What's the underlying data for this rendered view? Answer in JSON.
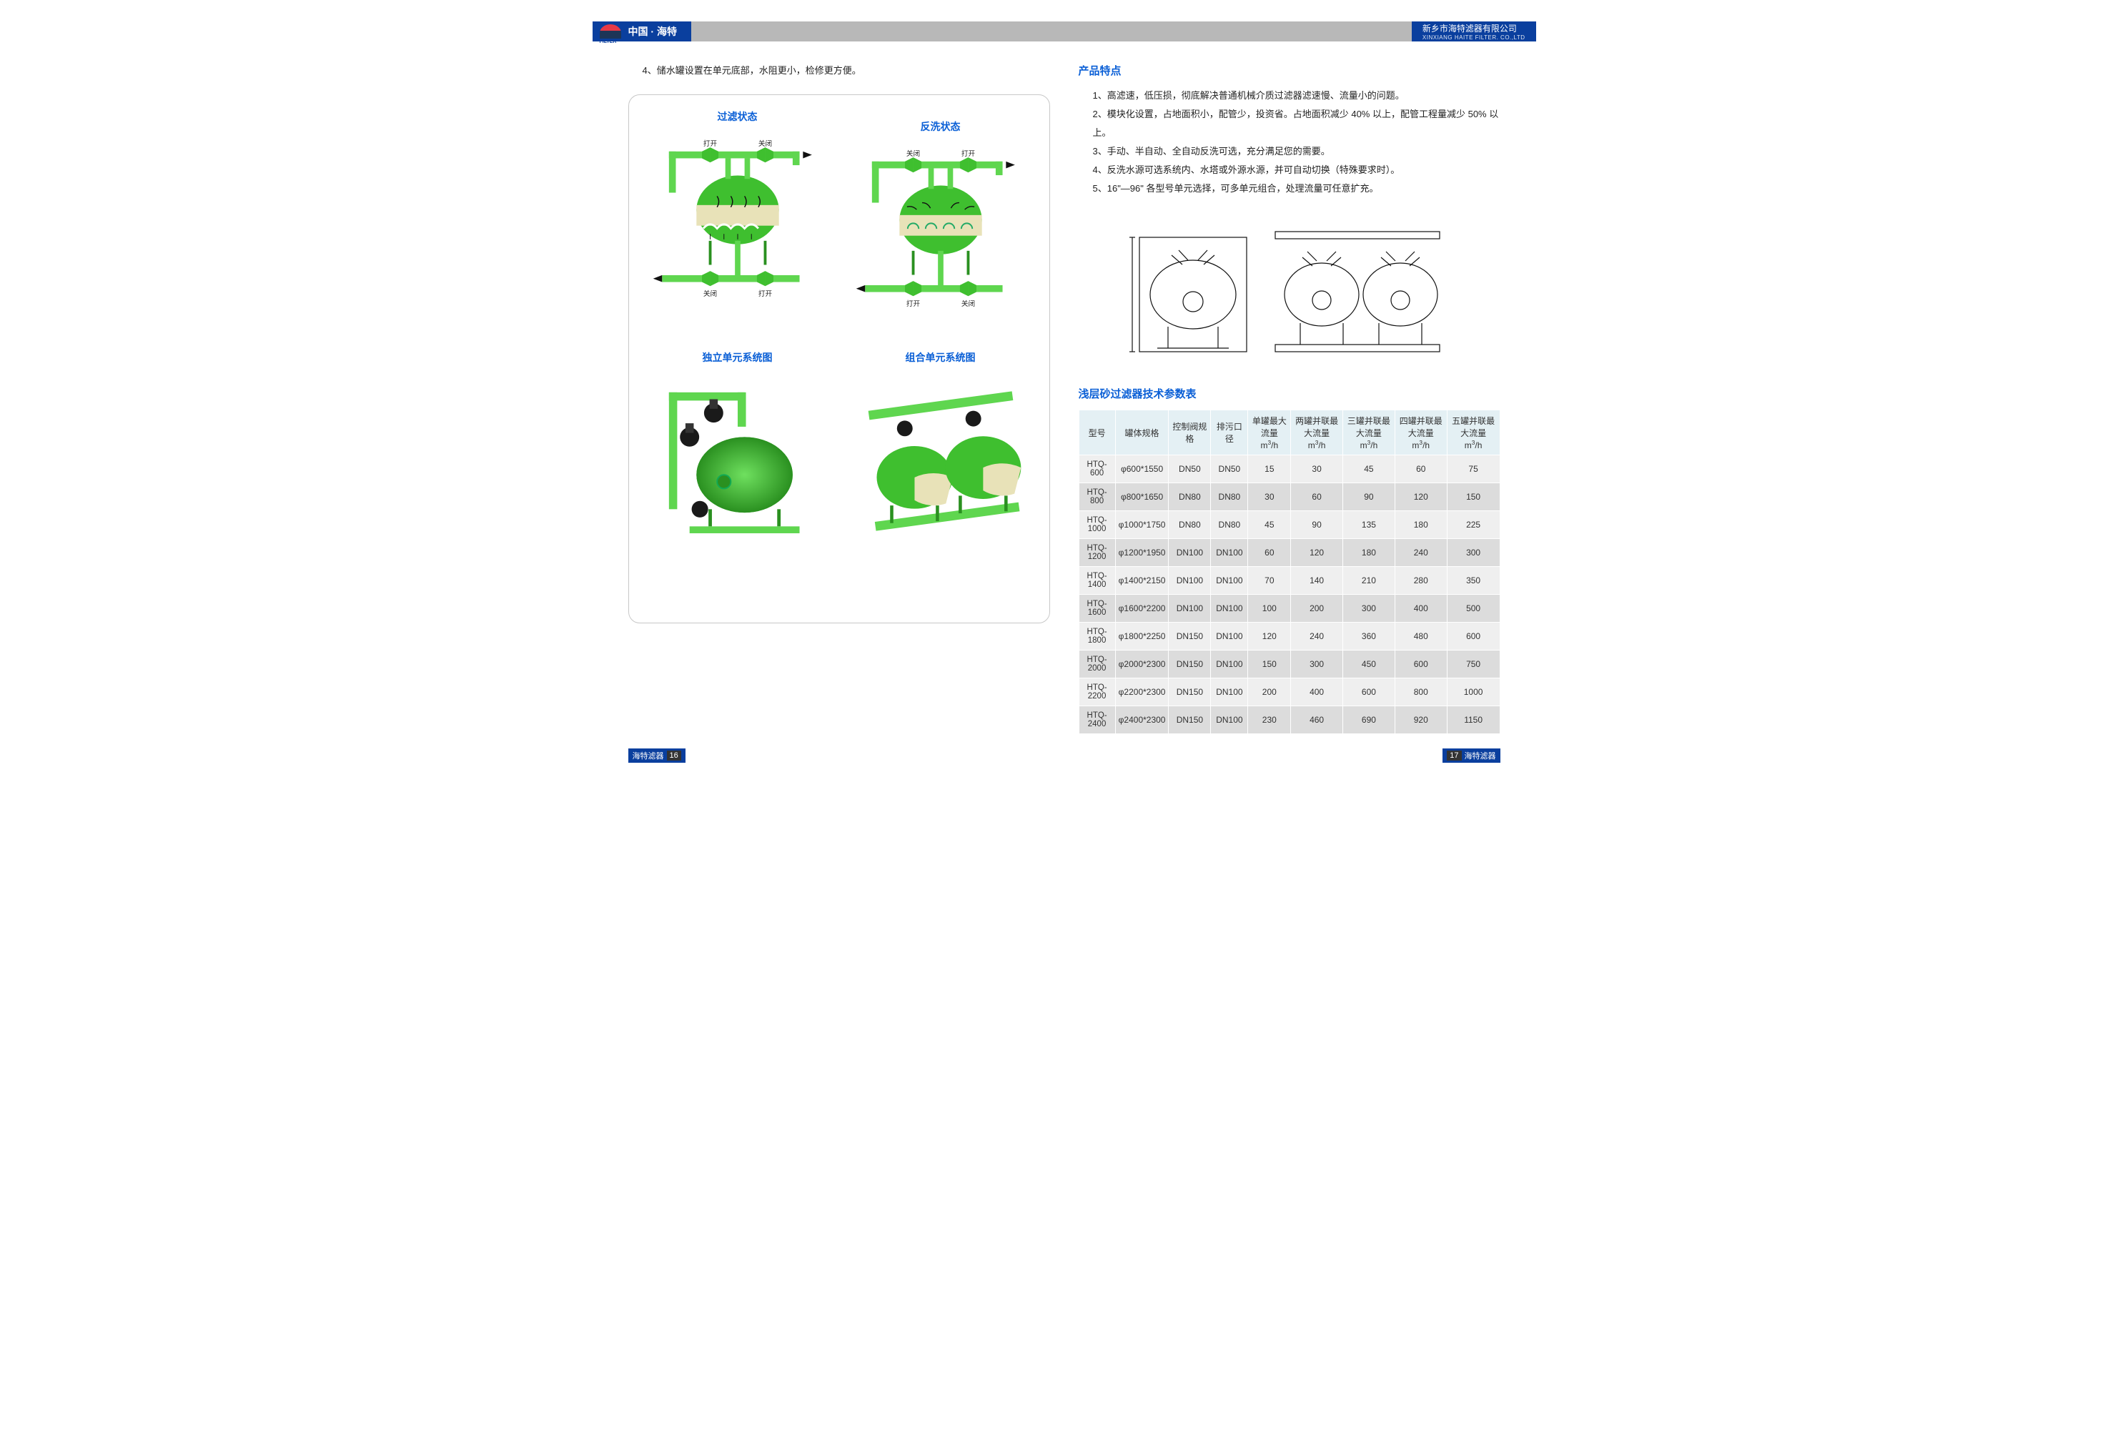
{
  "header": {
    "brand_cn": "中国 · 海特",
    "company_cn": "新乡市海特滤器有限公司",
    "company_en": "XINXIANG HAITE FILTER. CO.,LTD"
  },
  "left": {
    "intro_line": "4、储水罐设置在单元底部，水阻更小，检修更方便。",
    "diag_titles": {
      "filter_state": "过滤状态",
      "backwash_state": "反洗状态",
      "single_unit": "独立单元系统图",
      "combo_unit": "组合单元系统图"
    },
    "valve_labels": {
      "open": "打开",
      "close": "关闭"
    },
    "colors": {
      "body_green": "#3fbf2f",
      "body_green_dark": "#2a9020",
      "pipe_green": "#5fd64f",
      "sand": "#e8e2b8",
      "valve_black": "#1a1a1a",
      "arrow": "#111111"
    }
  },
  "right": {
    "features_title": "产品特点",
    "features": [
      "1、高滤速，低压损，彻底解决普通机械介质过滤器滤速慢、流量小的问题。",
      "2、模块化设置，占地面积小，配管少，投资省。占地面积减少 40% 以上，配管工程量减少 50% 以上。",
      "3、手动、半自动、全自动反洗可选，充分满足您的需要。",
      "4、反洗水源可选系统内、水塔或外源水源，并可自动切换（特殊要求时）。",
      "5、16\"—96\" 各型号单元选择，可多单元组合，处理流量可任意扩充。"
    ],
    "table_title": "浅层砂过滤器技术参数表",
    "table": {
      "columns": [
        "型号",
        "罐体规格",
        "控制阀规格",
        "排污口径",
        "单罐最大流量\nm³/h",
        "两罐并联最大流量\nm³/h",
        "三罐并联最大流量\nm³/h",
        "四罐并联最大流量\nm³/h",
        "五罐并联最大流量\nm³/h"
      ],
      "rows": [
        [
          "HTQ-600",
          "φ600*1550",
          "DN50",
          "DN50",
          "15",
          "30",
          "45",
          "60",
          "75"
        ],
        [
          "HTQ-800",
          "φ800*1650",
          "DN80",
          "DN80",
          "30",
          "60",
          "90",
          "120",
          "150"
        ],
        [
          "HTQ-1000",
          "φ1000*1750",
          "DN80",
          "DN80",
          "45",
          "90",
          "135",
          "180",
          "225"
        ],
        [
          "HTQ-1200",
          "φ1200*1950",
          "DN100",
          "DN100",
          "60",
          "120",
          "180",
          "240",
          "300"
        ],
        [
          "HTQ-1400",
          "φ1400*2150",
          "DN100",
          "DN100",
          "70",
          "140",
          "210",
          "280",
          "350"
        ],
        [
          "HTQ-1600",
          "φ1600*2200",
          "DN100",
          "DN100",
          "100",
          "200",
          "300",
          "400",
          "500"
        ],
        [
          "HTQ-1800",
          "φ1800*2250",
          "DN150",
          "DN100",
          "120",
          "240",
          "360",
          "480",
          "600"
        ],
        [
          "HTQ-2000",
          "φ2000*2300",
          "DN150",
          "DN100",
          "150",
          "300",
          "450",
          "600",
          "750"
        ],
        [
          "HTQ-2200",
          "φ2200*2300",
          "DN150",
          "DN100",
          "200",
          "400",
          "600",
          "800",
          "1000"
        ],
        [
          "HTQ-2400",
          "φ2400*2300",
          "DN150",
          "DN100",
          "230",
          "460",
          "690",
          "920",
          "1150"
        ]
      ]
    }
  },
  "footer": {
    "brand_label": "海特滤器",
    "page_left": "16",
    "page_right": "17"
  }
}
